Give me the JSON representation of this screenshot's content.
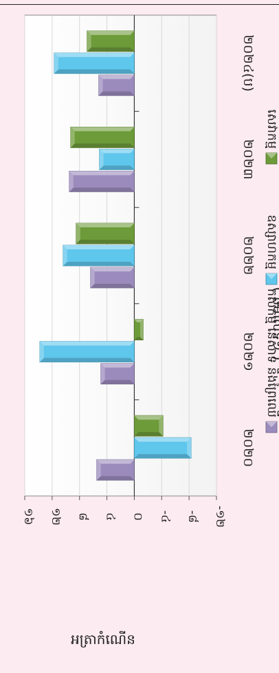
{
  "chart_data": {
    "type": "bar",
    "orientation": "horizontal",
    "subtitle": "( ឆមាសទី១ )",
    "ylabel": "អត្រាកំណើន",
    "categories": [
      "២០២០",
      "២០២១",
      "២០២២",
      "២០២៣",
      "២០២៤(ប)"
    ],
    "xlim": [
      -12,
      16
    ],
    "ticks": [
      16,
      12,
      8,
      4,
      0,
      -4,
      -8,
      -12
    ],
    "tick_labels": [
      "១៦",
      "១២",
      "៨",
      "៤",
      "០",
      "-៤",
      "-៨",
      "-១២"
    ],
    "series": [
      {
        "name": "កសិកម្ម នេសាទ និងព្រៃឈើ",
        "color": "#9b8bbd",
        "values": [
          5.5,
          4.9,
          6.4,
          9.5,
          5.2
        ]
      },
      {
        "name": "ឧស្សាហកម្ម",
        "color": "#5fc6ec",
        "values": [
          -8.3,
          13.8,
          10.4,
          5.1,
          11.7
        ]
      },
      {
        "name": "សេវាកម្ម",
        "color": "#6e9b3a",
        "values": [
          -4.2,
          -1.3,
          8.5,
          9.3,
          6.9
        ]
      }
    ],
    "grid": true,
    "legend_position": "bottom"
  }
}
